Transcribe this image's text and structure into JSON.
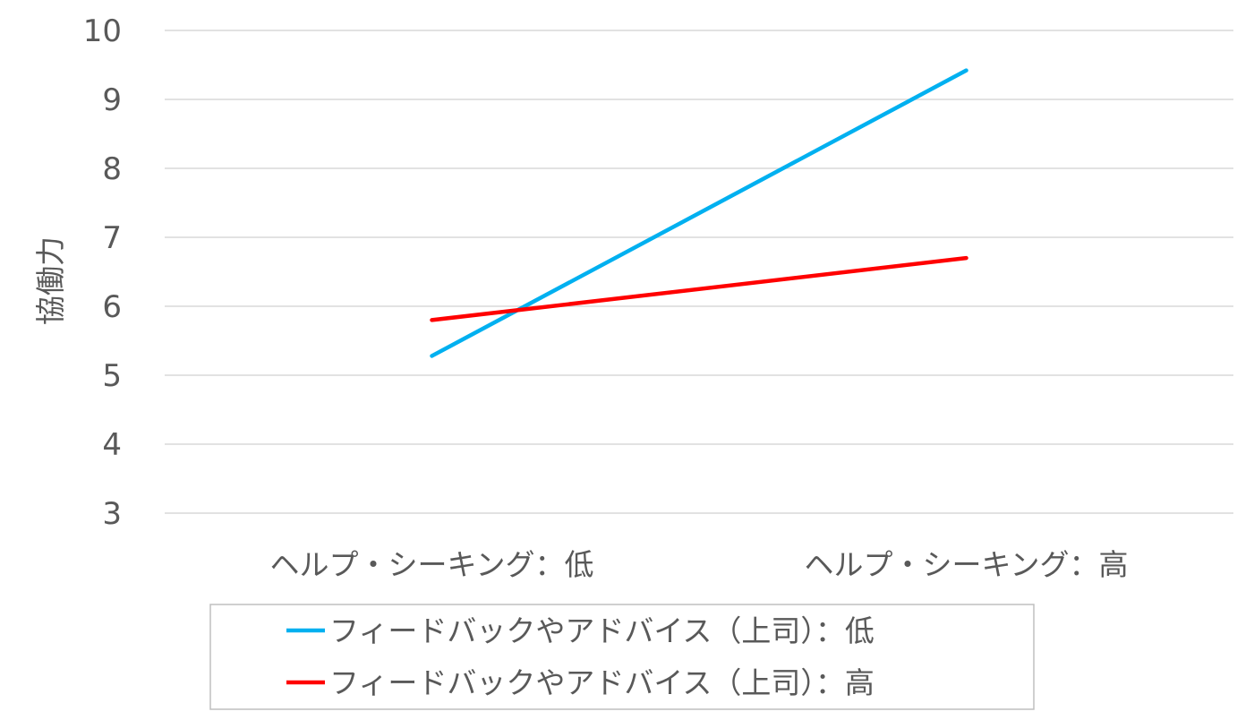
{
  "chart_data": {
    "type": "line",
    "categories": [
      "ヘルプ・シーキング：低",
      "ヘルプ・シーキング：高"
    ],
    "series": [
      {
        "name": "フィードバックやアドバイス（上司）：低",
        "values": [
          5.28,
          9.42
        ],
        "color": "#00b0f0"
      },
      {
        "name": "フィードバックやアドバイス（上司）：高",
        "values": [
          5.8,
          6.7
        ],
        "color": "#ff0000"
      }
    ],
    "title": "",
    "xlabel": "",
    "ylabel": "協働力",
    "ylim": [
      3,
      10
    ],
    "yticks": [
      3,
      4,
      5,
      6,
      7,
      8,
      9,
      10
    ],
    "grid": true,
    "legend_position": "bottom"
  }
}
